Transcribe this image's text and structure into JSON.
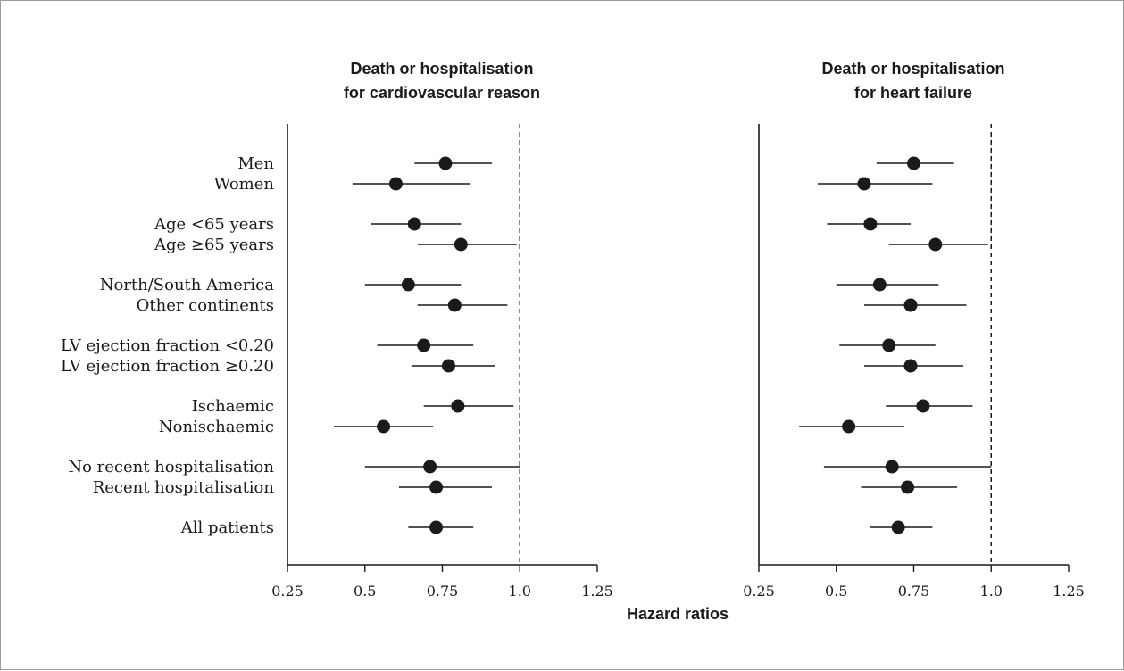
{
  "chart_data": {
    "type": "forest",
    "xlabel": "Hazard ratios",
    "xlim": [
      0.25,
      1.25
    ],
    "xticks": [
      0.25,
      0.5,
      0.75,
      1.0,
      1.25
    ],
    "xtick_labels": [
      "0.25",
      "0.5",
      "0.75",
      "1.0",
      "1.25"
    ],
    "reference_line": 1.0,
    "categories": [
      "Men",
      "Women",
      "Age <65 years",
      "Age ≥65 years",
      "North/South America",
      "Other continents",
      "LV ejection fraction <0.20",
      "LV ejection fraction ≥0.20",
      "Ischaemic",
      "Nonischaemic",
      "No recent hospitalisation",
      "Recent hospitalisation",
      "All patients"
    ],
    "panels": [
      {
        "title_lines": [
          "Death or hospitalisation",
          "for cardiovascular reason"
        ],
        "points": [
          {
            "hr": 0.76,
            "lo": 0.66,
            "hi": 0.91
          },
          {
            "hr": 0.6,
            "lo": 0.46,
            "hi": 0.84
          },
          {
            "hr": 0.66,
            "lo": 0.52,
            "hi": 0.81
          },
          {
            "hr": 0.81,
            "lo": 0.67,
            "hi": 0.99
          },
          {
            "hr": 0.64,
            "lo": 0.5,
            "hi": 0.81
          },
          {
            "hr": 0.79,
            "lo": 0.67,
            "hi": 0.96
          },
          {
            "hr": 0.69,
            "lo": 0.54,
            "hi": 0.85
          },
          {
            "hr": 0.77,
            "lo": 0.65,
            "hi": 0.92
          },
          {
            "hr": 0.8,
            "lo": 0.69,
            "hi": 0.98
          },
          {
            "hr": 0.56,
            "lo": 0.4,
            "hi": 0.72
          },
          {
            "hr": 0.71,
            "lo": 0.5,
            "hi": 1.0
          },
          {
            "hr": 0.73,
            "lo": 0.61,
            "hi": 0.91
          },
          {
            "hr": 0.73,
            "lo": 0.64,
            "hi": 0.85
          }
        ]
      },
      {
        "title_lines": [
          "Death or hospitalisation",
          "for heart failure"
        ],
        "points": [
          {
            "hr": 0.75,
            "lo": 0.63,
            "hi": 0.88
          },
          {
            "hr": 0.59,
            "lo": 0.44,
            "hi": 0.81
          },
          {
            "hr": 0.61,
            "lo": 0.47,
            "hi": 0.74
          },
          {
            "hr": 0.82,
            "lo": 0.67,
            "hi": 0.99
          },
          {
            "hr": 0.64,
            "lo": 0.5,
            "hi": 0.83
          },
          {
            "hr": 0.74,
            "lo": 0.59,
            "hi": 0.92
          },
          {
            "hr": 0.67,
            "lo": 0.51,
            "hi": 0.82
          },
          {
            "hr": 0.74,
            "lo": 0.59,
            "hi": 0.91
          },
          {
            "hr": 0.78,
            "lo": 0.66,
            "hi": 0.94
          },
          {
            "hr": 0.54,
            "lo": 0.38,
            "hi": 0.72
          },
          {
            "hr": 0.68,
            "lo": 0.46,
            "hi": 1.0
          },
          {
            "hr": 0.73,
            "lo": 0.58,
            "hi": 0.89
          },
          {
            "hr": 0.7,
            "lo": 0.61,
            "hi": 0.81
          }
        ]
      }
    ],
    "grid": false,
    "colors": {
      "marker": "#1a1a1a",
      "line": "#1a1a1a"
    }
  }
}
